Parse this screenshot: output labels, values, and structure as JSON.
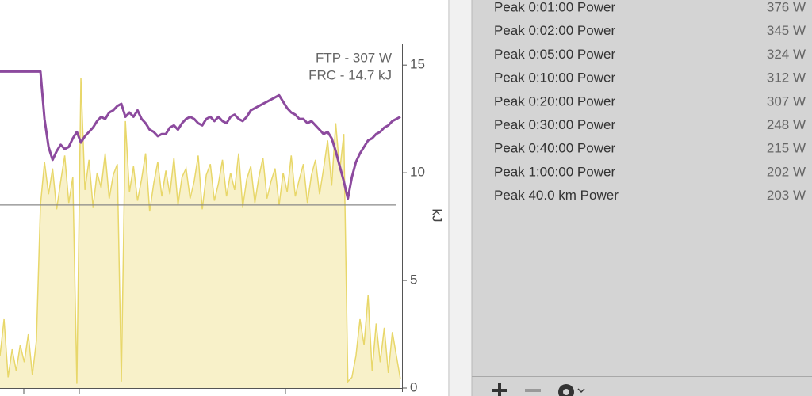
{
  "chart_data": {
    "type": "line-area",
    "annotations": [
      "FTP - 307 W",
      "FRC - 14.7 kJ"
    ],
    "y_label": "kJ",
    "ylim": [
      0,
      16
    ],
    "yticks": [
      0,
      5,
      10,
      15
    ],
    "reference_line": 8.5,
    "categories": [
      null,
      null,
      null,
      null,
      null,
      null,
      null,
      null,
      null,
      null,
      null,
      null,
      null,
      null,
      null,
      null,
      null,
      null,
      null,
      null,
      null,
      null,
      null,
      null,
      null,
      null,
      null,
      null,
      null,
      null,
      null,
      null,
      null,
      null,
      null,
      null,
      null,
      null,
      null,
      null,
      null,
      null,
      null,
      null,
      null,
      null,
      null,
      null,
      null,
      null,
      null,
      null,
      null,
      null,
      null,
      null,
      null,
      null,
      null,
      null,
      null,
      null,
      null,
      null,
      null,
      null,
      null,
      null,
      null,
      null,
      null,
      null,
      null,
      null,
      null,
      null,
      null,
      null,
      null,
      null,
      null,
      null,
      null,
      null,
      null,
      null,
      null,
      null,
      null,
      null,
      null,
      null,
      null,
      null,
      null,
      null,
      null,
      null,
      null,
      null
    ],
    "series": [
      {
        "kind": "area",
        "color": "#e8d76a",
        "fill": "#f8f1c9",
        "values": [
          1.5,
          3.2,
          0.5,
          1.8,
          0.8,
          2.0,
          1.2,
          2.5,
          0.6,
          2.2,
          8.5,
          10.5,
          9.0,
          10.2,
          8.3,
          9.6,
          10.8,
          8.6,
          9.8,
          0.2,
          14.4,
          9.2,
          10.6,
          8.4,
          10.0,
          9.3,
          10.9,
          8.8,
          9.9,
          10.4,
          0.3,
          12.4,
          9.1,
          10.3,
          8.7,
          9.7,
          10.9,
          8.2,
          9.5,
          10.5,
          8.9,
          10.1,
          9.0,
          10.7,
          8.5,
          9.8,
          10.2,
          8.8,
          9.6,
          10.8,
          8.3,
          9.9,
          10.4,
          8.7,
          9.5,
          10.6,
          8.9,
          10.0,
          9.2,
          10.9,
          8.4,
          9.7,
          10.3,
          8.6,
          9.8,
          10.7,
          8.8,
          9.6,
          10.2,
          8.5,
          10.0,
          9.1,
          10.8,
          8.9,
          9.7,
          10.4,
          8.6,
          9.9,
          10.6,
          9.0,
          10.2,
          11.5,
          9.4,
          12.3,
          10.1,
          11.8,
          0.3,
          0.5,
          1.5,
          3.2,
          2.0,
          4.3,
          0.8,
          3.0,
          1.2,
          2.8,
          0.7,
          2.6,
          1.5,
          0.4
        ]
      },
      {
        "kind": "line",
        "color": "#8c4a9e",
        "values": [
          14.7,
          14.7,
          14.7,
          14.7,
          14.7,
          14.7,
          14.7,
          14.7,
          14.7,
          14.7,
          14.7,
          12.5,
          11.2,
          10.6,
          11.0,
          11.3,
          11.1,
          11.2,
          11.6,
          11.9,
          11.4,
          11.7,
          11.9,
          12.1,
          12.4,
          12.6,
          12.5,
          12.8,
          12.9,
          13.1,
          13.2,
          12.6,
          12.8,
          12.6,
          12.9,
          12.5,
          12.3,
          12.0,
          11.9,
          11.7,
          11.8,
          11.8,
          12.1,
          12.2,
          12.0,
          12.3,
          12.5,
          12.6,
          12.5,
          12.3,
          12.2,
          12.5,
          12.6,
          12.4,
          12.6,
          12.4,
          12.3,
          12.6,
          12.7,
          12.5,
          12.4,
          12.6,
          12.9,
          13.0,
          13.1,
          13.2,
          13.3,
          13.4,
          13.5,
          13.6,
          13.3,
          13.0,
          12.8,
          12.7,
          12.5,
          12.5,
          12.3,
          12.4,
          12.2,
          12.0,
          11.8,
          11.9,
          11.6,
          11.0,
          10.3,
          9.6,
          8.8,
          9.8,
          10.5,
          10.9,
          11.2,
          11.5,
          11.6,
          11.8,
          11.9,
          12.1,
          12.2,
          12.4,
          12.5,
          12.6
        ]
      }
    ]
  },
  "table": {
    "rows": [
      [
        "Peak 0:01:00 Power",
        "376 W"
      ],
      [
        "Peak 0:02:00 Power",
        "345 W"
      ],
      [
        "Peak 0:05:00 Power",
        "324 W"
      ],
      [
        "Peak 0:10:00 Power",
        "312 W"
      ],
      [
        "Peak 0:20:00 Power",
        "307 W"
      ],
      [
        "Peak 0:30:00 Power",
        "248 W"
      ],
      [
        "Peak 0:40:00 Power",
        "215 W"
      ],
      [
        "Peak 1:00:00 Power",
        "202 W"
      ],
      [
        "Peak 40.0 km Power",
        "203 W"
      ]
    ]
  }
}
